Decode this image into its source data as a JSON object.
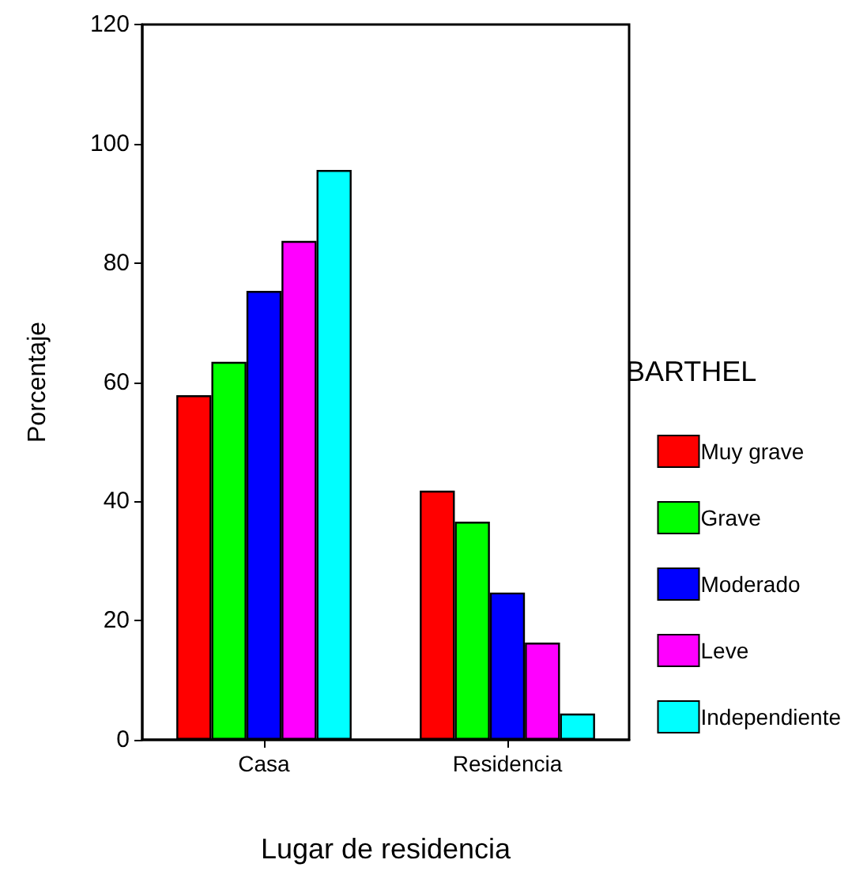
{
  "chart_data": {
    "type": "bar",
    "xlabel": "Lugar de residencia",
    "ylabel": "Porcentaje",
    "legend_title": "BARTHEL",
    "categories": [
      "Casa",
      "Residencia"
    ],
    "series": [
      {
        "name": "Muy grave",
        "color": "#ff0000",
        "values": [
          57.8,
          41.8
        ]
      },
      {
        "name": "Grave",
        "color": "#00ff00",
        "values": [
          63.4,
          36.6
        ]
      },
      {
        "name": "Moderado",
        "color": "#0000ff",
        "values": [
          75.3,
          24.7
        ]
      },
      {
        "name": "Leve",
        "color": "#ff00ff",
        "values": [
          83.7,
          16.3
        ]
      },
      {
        "name": "Independiente",
        "color": "#00ffff",
        "values": [
          95.6,
          4.4
        ]
      }
    ],
    "ylim": [
      0,
      120
    ],
    "yticks": [
      0,
      20,
      40,
      60,
      80,
      100,
      120
    ],
    "grid": false,
    "legend": "right"
  }
}
